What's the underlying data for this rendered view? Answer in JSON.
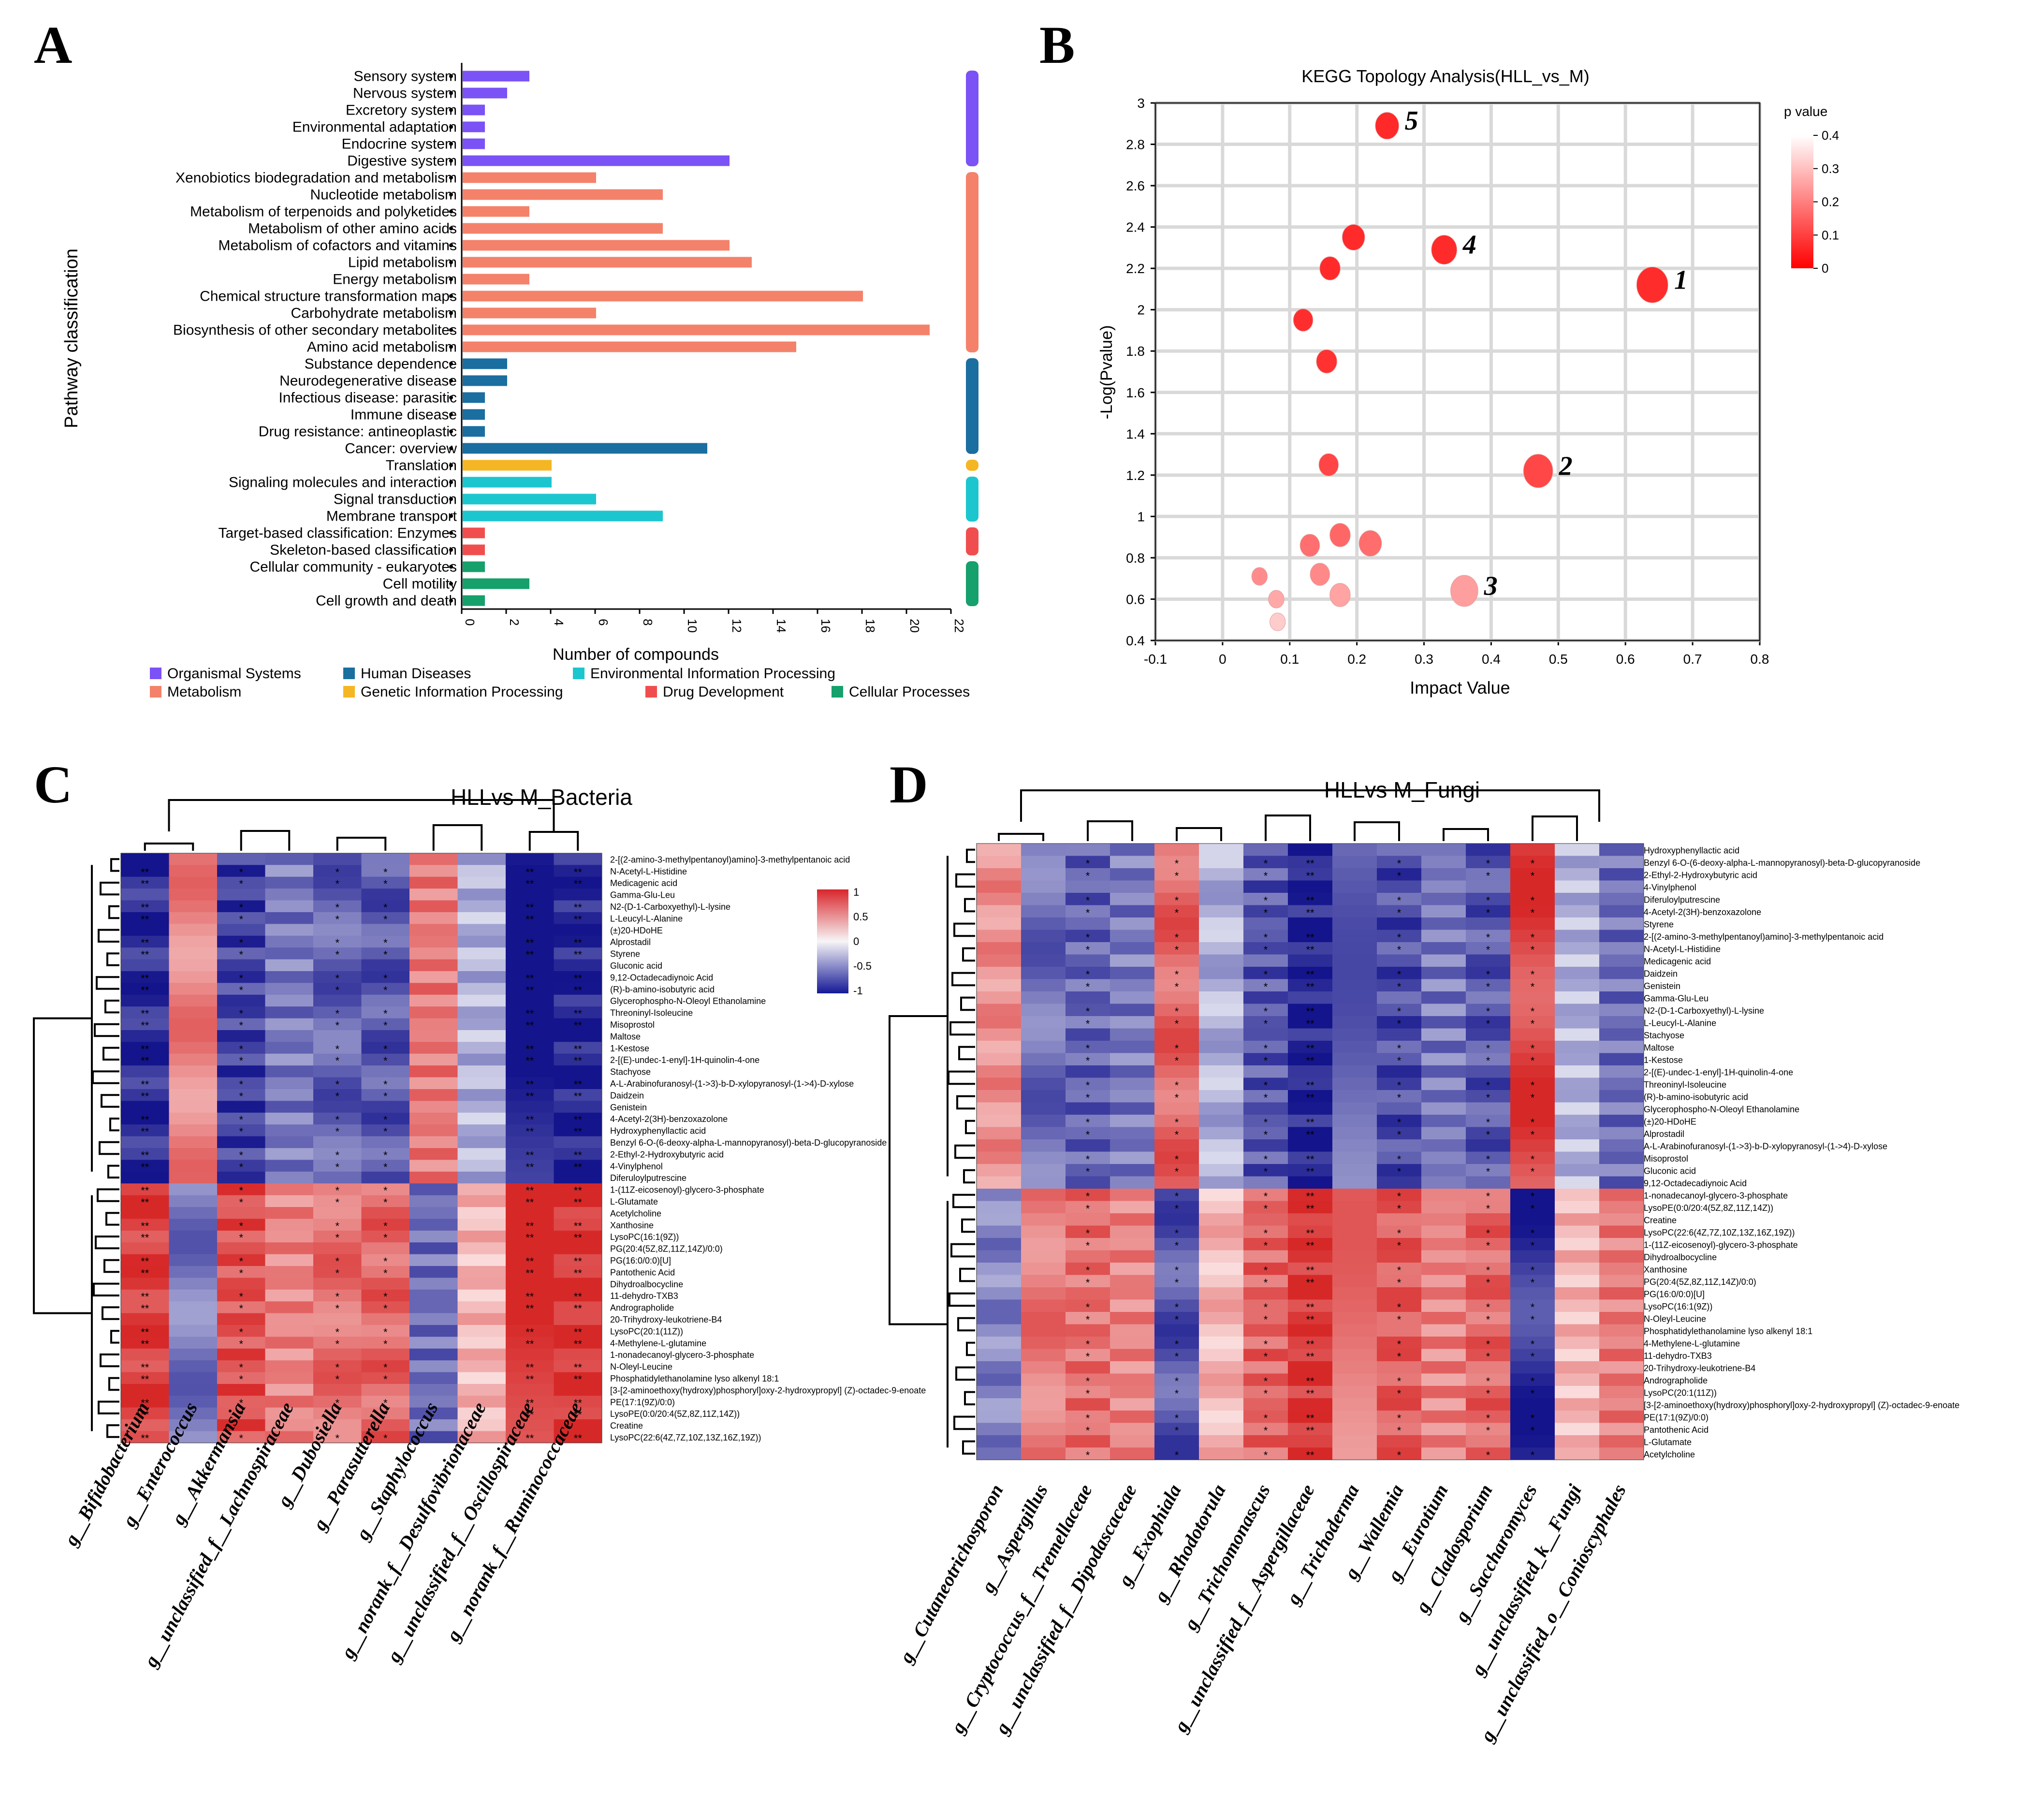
{
  "panels": {
    "A": {
      "letter": "A"
    },
    "B": {
      "letter": "B"
    },
    "C": {
      "letter": "C"
    },
    "D": {
      "letter": "D"
    }
  },
  "chart_data": [
    {
      "panel": "A",
      "type": "bar",
      "orientation": "horizontal",
      "ylabel": "Pathway classification",
      "xlabel": "Number of compounds",
      "xlim": [
        0,
        22
      ],
      "xticks": [
        0,
        2,
        4,
        6,
        8,
        10,
        12,
        14,
        16,
        18,
        20,
        22
      ],
      "categories": [
        "Sensory system",
        "Nervous system",
        "Excretory system",
        "Environmental adaptation",
        "Endocrine system",
        "Digestive system",
        "Xenobiotics biodegradation and metabolism",
        "Nucleotide metabolism",
        "Metabolism of terpenoids and polyketides",
        "Metabolism of other amino acids",
        "Metabolism of cofactors and vitamins",
        "Lipid metabolism",
        "Energy metabolism",
        "Chemical structure transformation maps",
        "Carbohydrate metabolism",
        "Biosynthesis of other secondary metabolites",
        "Amino acid metabolism",
        "Substance dependence",
        "Neurodegenerative disease",
        "Infectious disease: parasitic",
        "Immune disease",
        "Drug resistance: antineoplastic",
        "Cancer: overview",
        "Translation",
        "Signaling molecules and interaction",
        "Signal transduction",
        "Membrane transport",
        "Target-based classification: Enzymes",
        "Skeleton-based classification",
        "Cellular community - eukaryotes",
        "Cell motility",
        "Cell growth and death"
      ],
      "values": [
        3,
        2,
        1,
        1,
        1,
        12,
        6,
        9,
        3,
        9,
        12,
        13,
        3,
        18,
        6,
        21,
        15,
        2,
        2,
        1,
        1,
        1,
        11,
        4,
        4,
        6,
        9,
        1,
        1,
        1,
        3,
        1
      ],
      "groups": [
        {
          "name": "Organismal Systems",
          "color": "#7b52f5",
          "count": 6
        },
        {
          "name": "Metabolism",
          "color": "#f4826a",
          "count": 11
        },
        {
          "name": "Human Diseases",
          "color": "#1a6ea0",
          "count": 6
        },
        {
          "name": "Genetic Information Processing",
          "color": "#f5b623",
          "count": 1
        },
        {
          "name": "Environmental Information Processing",
          "color": "#1cc6cf",
          "count": 3
        },
        {
          "name": "Drug Development",
          "color": "#f04e4e",
          "count": 2
        },
        {
          "name": "Cellular Processes",
          "color": "#16a06c",
          "count": 3
        }
      ],
      "legend_order": [
        "Organismal Systems",
        "Human Diseases",
        "Environmental Information Processing",
        "Metabolism",
        "Genetic Information Processing",
        "Drug Development",
        "Cellular Processes"
      ]
    },
    {
      "panel": "B",
      "type": "scatter",
      "title": "KEGG Topology Analysis(HLL_vs_M)",
      "xlabel": "Impact Value",
      "ylabel": "-Log(Pvalue)",
      "xlim": [
        -0.1,
        0.8
      ],
      "ylim": [
        0.4,
        3
      ],
      "xticks": [
        -0.1,
        0,
        0.1,
        0.2,
        0.3,
        0.4,
        0.5,
        0.6,
        0.7,
        0.8
      ],
      "yticks": [
        0.4,
        0.6,
        0.8,
        1,
        1.2,
        1.4,
        1.6,
        1.8,
        2,
        2.2,
        2.4,
        2.6,
        2.8,
        3
      ],
      "grid": true,
      "colorbar": {
        "title": "p value",
        "ticks": [
          0,
          0.1,
          0.2,
          0.3,
          0.4
        ],
        "low_color": "#ff0000",
        "high_color": "#ffffff"
      },
      "points": [
        {
          "x": 0.64,
          "y": 2.12,
          "p": 0.008,
          "size": 1.6,
          "label": "1"
        },
        {
          "x": 0.47,
          "y": 1.22,
          "p": 0.06,
          "size": 1.5,
          "label": "2"
        },
        {
          "x": 0.36,
          "y": 0.64,
          "p": 0.23,
          "size": 1.4,
          "label": "3"
        },
        {
          "x": 0.33,
          "y": 2.29,
          "p": 0.005,
          "size": 1.3,
          "label": "4"
        },
        {
          "x": 0.245,
          "y": 2.89,
          "p": 0.001,
          "size": 1.2,
          "label": "5"
        },
        {
          "x": 0.195,
          "y": 2.35,
          "p": 0.004,
          "size": 1.15,
          "label": ""
        },
        {
          "x": 0.16,
          "y": 2.2,
          "p": 0.006,
          "size": 1.05,
          "label": ""
        },
        {
          "x": 0.12,
          "y": 1.95,
          "p": 0.011,
          "size": 1.0,
          "label": ""
        },
        {
          "x": 0.155,
          "y": 1.75,
          "p": 0.018,
          "size": 1.05,
          "label": ""
        },
        {
          "x": 0.158,
          "y": 1.25,
          "p": 0.056,
          "size": 1.0,
          "label": ""
        },
        {
          "x": 0.22,
          "y": 0.87,
          "p": 0.135,
          "size": 1.15,
          "label": ""
        },
        {
          "x": 0.175,
          "y": 0.91,
          "p": 0.123,
          "size": 1.05,
          "label": ""
        },
        {
          "x": 0.13,
          "y": 0.86,
          "p": 0.138,
          "size": 1.0,
          "label": ""
        },
        {
          "x": 0.145,
          "y": 0.72,
          "p": 0.19,
          "size": 1.0,
          "label": ""
        },
        {
          "x": 0.055,
          "y": 0.71,
          "p": 0.195,
          "size": 0.8,
          "label": ""
        },
        {
          "x": 0.175,
          "y": 0.62,
          "p": 0.24,
          "size": 1.05,
          "label": ""
        },
        {
          "x": 0.08,
          "y": 0.6,
          "p": 0.25,
          "size": 0.8,
          "label": ""
        },
        {
          "x": 0.082,
          "y": 0.49,
          "p": 0.32,
          "size": 0.8,
          "label": ""
        }
      ]
    },
    {
      "panel": "C",
      "type": "heatmap",
      "title": "HLLvs M_Bacteria",
      "colorbar": {
        "ticks": [
          1,
          0.5,
          0,
          -0.5,
          -1
        ]
      },
      "columns": [
        "g__Bifidobacterium",
        "g__Enterococcus",
        "g__Akkermansia",
        "g__unclassified_f__Lachnospiraceae",
        "g__Dubosiella",
        "g__Parasutterella",
        "g__Staphylococcus",
        "g__norank_f__Desulfovibrionaceae",
        "g__unclassified_f__Oscillospiraceae",
        "g__norank_f__Ruminococcaceae"
      ],
      "rows": [
        "2-[(2-amino-3-methylpentanoyl)amino]-3-methylpentanoic acid",
        "N-Acetyl-L-Histidine",
        "Medicagenic acid",
        "Gamma-Glu-Leu",
        "N2-(D-1-Carboxyethyl)-L-lysine",
        "L-Leucyl-L-Alanine",
        "(±)20-HDoHE",
        "Alprostadil",
        "Styrene",
        "Gluconic acid",
        "9,12-Octadecadiynoic Acid",
        "(R)-b-amino-isobutyric acid",
        "Glycerophospho-N-Oleoyl Ethanolamine",
        "Threoninyl-Isoleucine",
        "Misoprostol",
        "Maltose",
        "1-Kestose",
        "2-[(E)-undec-1-enyl]-1H-quinolin-4-one",
        "Stachyose",
        "A-L-Arabinofuranosyl-(1->3)-b-D-xylopyranosyl-(1->4)-D-xylose",
        "Daidzein",
        "Genistein",
        "4-Acetyl-2(3H)-benzoxazolone",
        "Hydroxyphenyllactic acid",
        "Benzyl 6-O-(6-deoxy-alpha-L-mannopyranosyl)-beta-D-glucopyranoside",
        "2-Ethyl-2-Hydroxybutyric acid",
        "4-Vinylphenol",
        "Diferuloylputrescine",
        "1-(11Z-eicosenoyl)-glycero-3-phosphate",
        "L-Glutamate",
        "Acetylcholine",
        "Xanthosine",
        "LysoPC(16:1(9Z))",
        "PG(20:4(5Z,8Z,11Z,14Z)/0:0)",
        "PG(16:0/0:0)[U]",
        "Pantothenic Acid",
        "Dihydroalbocycline",
        "11-dehydro-TXB3",
        "Andrographolide",
        "20-Trihydroxy-leukotriene-B4",
        "LysoPC(20:1(11Z))",
        "4-Methylene-L-glutamine",
        "1-nonadecanoyl-glycero-3-phosphate",
        "N-Oleyl-Leucine",
        "Phosphatidylethanolamine lyso alkenyl 18:1",
        "[3-[2-aminoethoxy(hydroxy)phosphoryl]oxy-2-hydroxypropyl] (Z)-octadec-9-enoate",
        "PE(17:1(9Z)/0:0)",
        "LysoPE(0:0/20:4(5Z,8Z,11Z,14Z))",
        "Creatine",
        "LysoPC(22:6(4Z,7Z,10Z,13Z,16Z,19Z))"
      ],
      "values_pattern": [
        -0.9,
        0.55,
        -0.8,
        -0.55,
        -0.65,
        -0.7,
        0.6,
        -0.3,
        -0.95,
        -0.95
      ],
      "cluster_split_row": 28
    },
    {
      "panel": "D",
      "type": "heatmap",
      "title": "HLLvs M_Fungi",
      "columns": [
        "g__Cutaneotrichosporon",
        "g__Aspergillus",
        "g__Cryptococcus_f__Tremellaceae",
        "g__unclassified_f__Dipodascaceae",
        "g__Exophiala",
        "g__Rhodotorula",
        "g__Trichomonascus",
        "g__unclassified_f__Aspergillaceae",
        "g__Trichoderma",
        "g__Wallemia",
        "g__Eurotium",
        "g__Cladosporium",
        "g__Saccharomyces",
        "g__unclassified_k__Fungi",
        "g__unclassified_o__Conioscyphales"
      ],
      "rows": [
        "Hydroxyphenyllactic acid",
        "Benzyl 6-O-(6-deoxy-alpha-L-mannopyranosyl)-beta-D-glucopyranoside",
        "2-Ethyl-2-Hydroxybutyric acid",
        "4-Vinylphenol",
        "Diferuloylputrescine",
        "4-Acetyl-2(3H)-benzoxazolone",
        "Styrene",
        "2-[(2-amino-3-methylpentanoyl)amino]-3-methylpentanoic acid",
        "N-Acetyl-L-Histidine",
        "Medicagenic acid",
        "Daidzein",
        "Genistein",
        "Gamma-Glu-Leu",
        "N2-(D-1-Carboxyethyl)-L-lysine",
        "L-Leucyl-L-Alanine",
        "Stachyose",
        "Maltose",
        "1-Kestose",
        "2-[(E)-undec-1-enyl]-1H-quinolin-4-one",
        "Threoninyl-Isoleucine",
        "(R)-b-amino-isobutyric acid",
        "Glycerophospho-N-Oleoyl Ethanolamine",
        "(±)20-HDoHE",
        "Alprostadil",
        "A-L-Arabinofuranosyl-(1->3)-b-D-xylopyranosyl-(1->4)-D-xylose",
        "Misoprostol",
        "Gluconic acid",
        "9,12-Octadecadiynoic Acid",
        "1-nonadecanoyl-glycero-3-phosphate",
        "LysoPE(0:0/20:4(5Z,8Z,11Z,14Z))",
        "Creatine",
        "LysoPC(22:6(4Z,7Z,10Z,13Z,16Z,19Z))",
        "1-(11Z-eicosenoyl)-glycero-3-phosphate",
        "Dihydroalbocycline",
        "Xanthosine",
        "PG(20:4(5Z,8Z,11Z,14Z)/0:0)",
        "PG(16:0/0:0)[U]",
        "LysoPC(16:1(9Z))",
        "N-Oleyl-Leucine",
        "Phosphatidylethanolamine lyso alkenyl 18:1",
        "4-Methylene-L-glutamine",
        "11-dehydro-TXB3",
        "20-Trihydroxy-leukotriene-B4",
        "Andrographolide",
        "LysoPC(20:1(11Z))",
        "[3-[2-aminoethoxy(hydroxy)phosphoryl]oxy-2-hydroxypropyl] (Z)-octadec-9-enoate",
        "PE(17:1(9Z)/0:0)",
        "Pantothenic Acid",
        "L-Glutamate",
        "Acetylcholine"
      ],
      "values_pattern": [
        0.5,
        -0.6,
        -0.65,
        -0.55,
        0.7,
        -0.3,
        -0.7,
        -0.95,
        -0.6,
        -0.75,
        -0.55,
        -0.7,
        0.85,
        -0.3,
        -0.6
      ],
      "cluster_split_row": 28
    }
  ]
}
